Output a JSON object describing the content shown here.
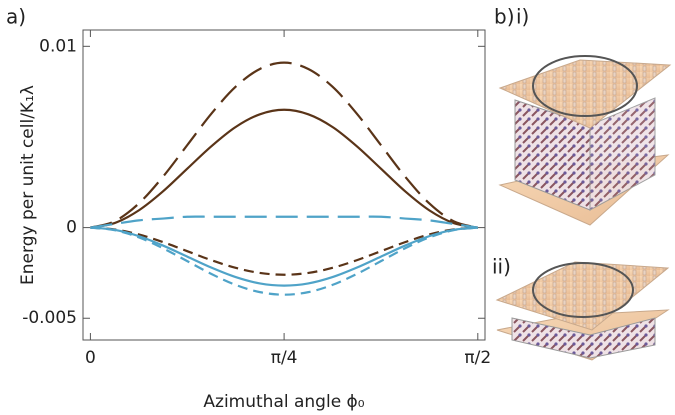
{
  "chart_data": {
    "type": "line",
    "y_label": "Energy per unit cell/K₁λ",
    "x_label": "Azimuthal angle ϕ₀",
    "x": [
      0,
      0.0982,
      0.1963,
      0.2945,
      0.3927,
      0.4909,
      0.589,
      0.6872,
      0.7854,
      0.8836,
      0.9817,
      1.0799,
      1.1781,
      1.2763,
      1.3744,
      1.4726,
      1.5708
    ],
    "series": [
      {
        "color": "#5a3418",
        "dash": "solid",
        "values": [
          0,
          0.00025,
          0.00095,
          0.002,
          0.00325,
          0.00449,
          0.00555,
          0.00625,
          0.0065,
          0.00625,
          0.00555,
          0.00449,
          0.00325,
          0.002,
          0.00095,
          0.00025,
          0
        ]
      },
      {
        "color": "#5a3418",
        "dash": "long",
        "values": [
          0,
          0.00035,
          0.00133,
          0.00281,
          0.00455,
          0.00629,
          0.00777,
          0.00875,
          0.0091,
          0.00875,
          0.00777,
          0.00629,
          0.00455,
          0.00281,
          0.00133,
          0.00035,
          0
        ]
      },
      {
        "color": "#5a3418",
        "dash": "short",
        "values": [
          0,
          -0.0001,
          -0.00038,
          -0.0008,
          -0.0013,
          -0.0018,
          -0.00222,
          -0.0025,
          -0.0026,
          -0.0025,
          -0.00222,
          -0.0018,
          -0.0013,
          -0.0008,
          -0.00038,
          -0.0001,
          0
        ]
      },
      {
        "color": "#4fa3c8",
        "dash": "solid",
        "values": [
          0,
          -0.00012,
          -0.00047,
          -0.00099,
          -0.0016,
          -0.00221,
          -0.00273,
          -0.00308,
          -0.0032,
          -0.00308,
          -0.00273,
          -0.00221,
          -0.0016,
          -0.00099,
          -0.00047,
          -0.00012,
          0
        ]
      },
      {
        "color": "#4fa3c8",
        "dash": "long",
        "values": [
          0,
          0.0002,
          0.0004,
          0.0005,
          0.0006,
          0.0006,
          0.0006,
          0.0006,
          0.0006,
          0.0006,
          0.0006,
          0.0006,
          0.0006,
          0.0005,
          0.0004,
          0.0002,
          0
        ]
      },
      {
        "color": "#4fa3c8",
        "dash": "short",
        "values": [
          0,
          -0.00014,
          -0.00054,
          -0.00114,
          -0.00185,
          -0.00256,
          -0.00316,
          -0.00356,
          -0.0037,
          -0.00356,
          -0.00316,
          -0.00256,
          -0.00185,
          -0.00114,
          -0.00054,
          -0.00014,
          0
        ]
      }
    ],
    "xlim": [
      -0.03,
      1.6
    ],
    "ylim": [
      -0.0062,
      0.0109
    ],
    "xticks": [
      0,
      {
        "value": 0.7854,
        "label": "π/4"
      },
      {
        "value": 1.5708,
        "label": "π/2"
      }
    ],
    "yticks": [
      -0.005,
      0,
      0.01
    ]
  },
  "labels": {
    "a": "a)",
    "b": "b)",
    "i": "i)",
    "ii": "ii)"
  }
}
